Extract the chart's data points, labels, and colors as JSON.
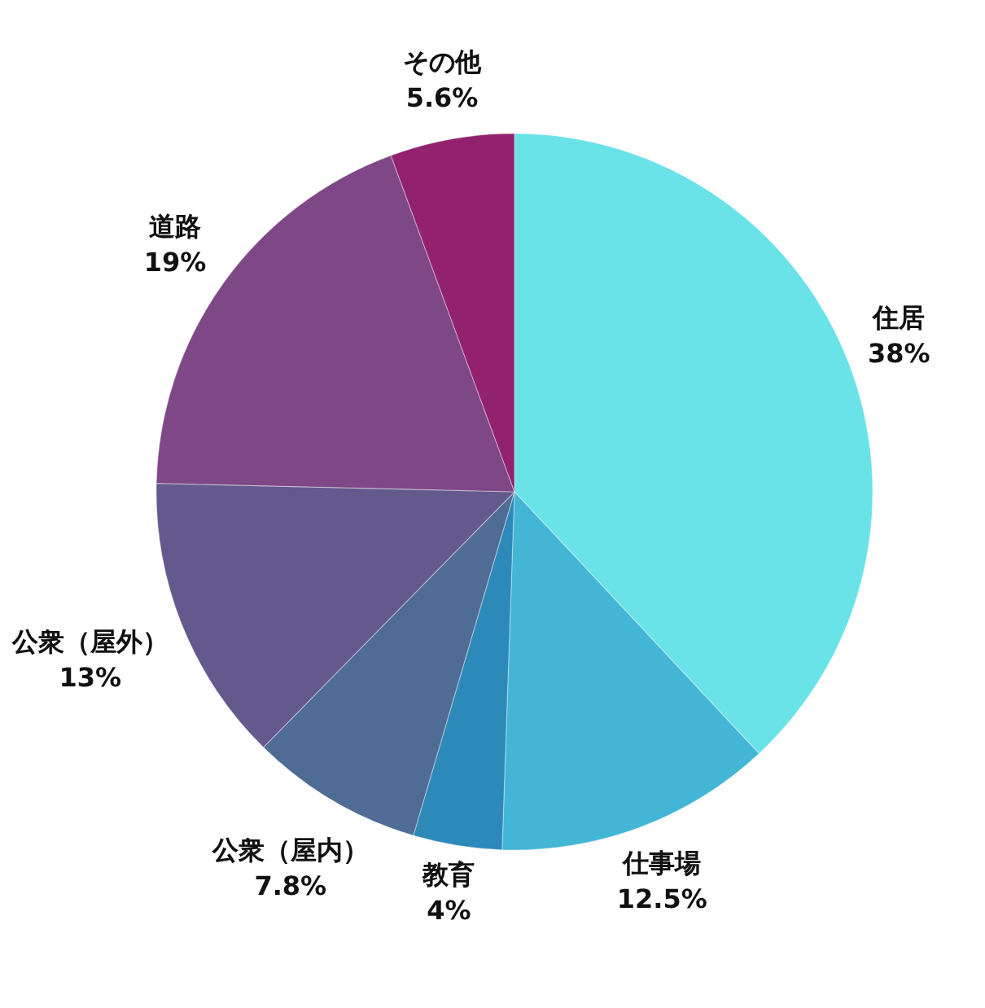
{
  "chart_data": {
    "type": "pie",
    "categories": [
      "住居",
      "仕事場",
      "教育",
      "公衆（屋内）",
      "公衆（屋外）",
      "道路",
      "その他"
    ],
    "values": [
      38,
      12.5,
      4,
      7.8,
      13,
      19,
      5.6
    ],
    "value_labels": [
      "38%",
      "12.5%",
      "4%",
      "7.8%",
      "13%",
      "19%",
      "5.6%"
    ],
    "colors": [
      "#6ae3e8",
      "#43b6d6",
      "#2d89b9",
      "#4f6c95",
      "#64598d",
      "#7e4786",
      "#93226e"
    ],
    "legend": false
  }
}
